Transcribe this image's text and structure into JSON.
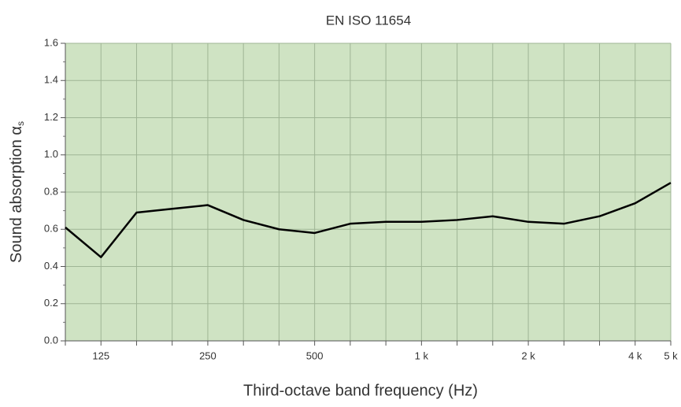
{
  "chart_data": {
    "type": "line",
    "title": "EN ISO 11654",
    "x_label": "Third-octave band frequency (Hz)",
    "y_label": "Sound absorption α",
    "y_label_subscript": "s",
    "categories": [
      null,
      "125",
      null,
      null,
      "250",
      null,
      null,
      "500",
      null,
      null,
      "1 k",
      null,
      null,
      "2 k",
      null,
      null,
      "4 k",
      "5 k"
    ],
    "series": [
      {
        "color": "#000000",
        "values": [
          0.61,
          0.45,
          0.69,
          0.71,
          0.73,
          0.65,
          0.6,
          0.58,
          0.63,
          0.64,
          0.64,
          0.65,
          0.67,
          0.64,
          0.63,
          0.67,
          0.74,
          0.85
        ]
      }
    ],
    "ylim": [
      0,
      1.6
    ],
    "yticks": [
      {
        "value": 0,
        "label": "0.0"
      },
      0.2,
      0.4,
      0.6,
      0.8,
      {
        "value": 1,
        "label": "1.0"
      },
      1.2,
      1.4,
      1.6
    ],
    "grid": true,
    "background": "#cfe3c3"
  }
}
